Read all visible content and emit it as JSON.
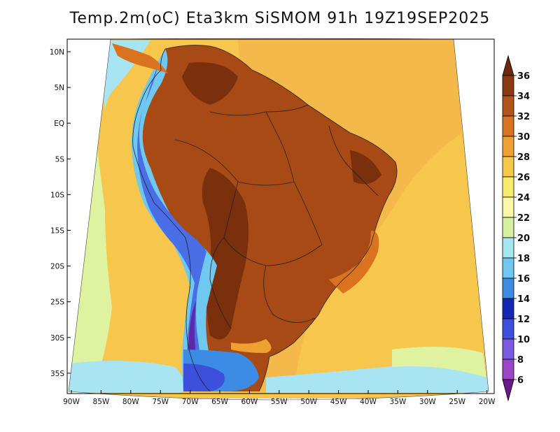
{
  "title": "Temp.2m(oC) Eta3km SiSMOM 91h 19Z19SEP2025",
  "lat_ticks": [
    "10N",
    "5N",
    "EQ",
    "5S",
    "10S",
    "15S",
    "20S",
    "25S",
    "30S",
    "35S"
  ],
  "lon_ticks": [
    "90W",
    "85W",
    "80W",
    "75W",
    "70W",
    "65W",
    "60W",
    "55W",
    "50W",
    "45W",
    "40W",
    "35W",
    "30W",
    "25W",
    "20W"
  ],
  "colorbar": {
    "labels": [
      "36",
      "34",
      "32",
      "30",
      "28",
      "26",
      "24",
      "22",
      "20",
      "18",
      "16",
      "14",
      "12",
      "10",
      "8",
      "6"
    ],
    "colors": [
      "#6b2a0e",
      "#8a3a10",
      "#b5541a",
      "#d9731f",
      "#f0a030",
      "#f5c84a",
      "#f8ea6a",
      "#f8f8a8",
      "#d7f0a0",
      "#a6e6f0",
      "#6ec8f0",
      "#3c8ce6",
      "#1428b4",
      "#3c50dc",
      "#7a5ae0",
      "#9a46c8",
      "#6a1a8a"
    ]
  },
  "colors": {
    "ocean": "#f7c64c",
    "ocean_warm": "#f4b240",
    "land_hot": "#a84a16",
    "land_very_hot": "#7a300c",
    "andes_cold": "#4a6ee6",
    "andes_very_cold": "#5a2aa8",
    "coast_cool": "#a8e4f2",
    "coast_mild": "#dff2a0"
  }
}
